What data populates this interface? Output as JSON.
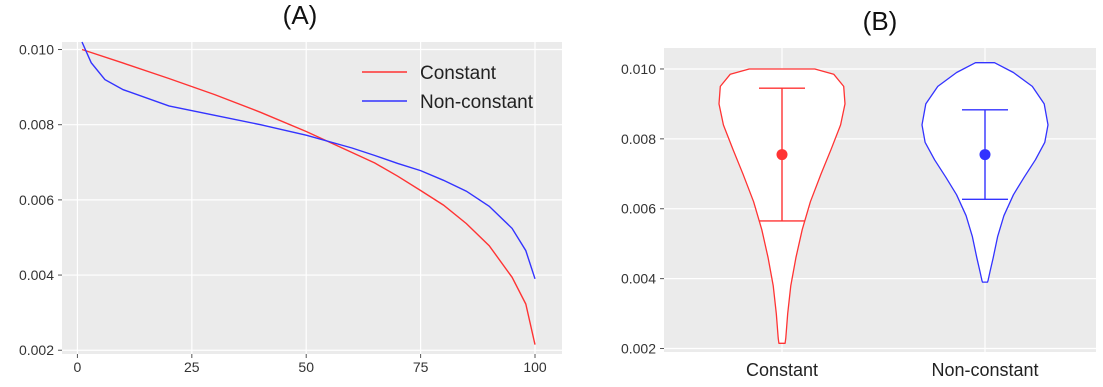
{
  "panels": {
    "a_label": "(A)",
    "b_label": "(B)"
  },
  "colors": {
    "constant": "#ff3333",
    "non_constant": "#3333ff",
    "panel_bg": "#ebebeb",
    "grid": "#ffffff"
  },
  "chart_data": [
    {
      "type": "line",
      "title": "(A)",
      "xlabel": "",
      "ylabel": "",
      "xlim": [
        1,
        100
      ],
      "ylim": [
        0.0019,
        0.0102
      ],
      "x_ticks": [
        "0",
        "25",
        "50",
        "75",
        "100"
      ],
      "y_ticks": [
        "0.002",
        "0.004",
        "0.006",
        "0.008",
        "0.010"
      ],
      "grid": true,
      "legend_position": "top-right",
      "series": [
        {
          "name": "Constant",
          "color": "#ff3333",
          "x": [
            1,
            10,
            20,
            30,
            40,
            50,
            60,
            65,
            70,
            75,
            80,
            85,
            90,
            95,
            98,
            100
          ],
          "y": [
            0.01,
            0.00964,
            0.00923,
            0.0088,
            0.00833,
            0.00782,
            0.00726,
            0.00698,
            0.00663,
            0.00625,
            0.00586,
            0.00537,
            0.00478,
            0.00394,
            0.00323,
            0.00215
          ]
        },
        {
          "name": "Non-constant",
          "color": "#3333ff",
          "x": [
            1,
            3,
            6,
            10,
            20,
            30,
            40,
            50,
            60,
            65,
            70,
            75,
            80,
            85,
            90,
            95,
            98,
            100
          ],
          "y": [
            0.0102,
            0.00965,
            0.0092,
            0.00893,
            0.0085,
            0.00825,
            0.008,
            0.00772,
            0.00738,
            0.00718,
            0.00697,
            0.00678,
            0.00652,
            0.00623,
            0.00583,
            0.00524,
            0.00465,
            0.0039
          ]
        }
      ]
    },
    {
      "type": "violin",
      "title": "(B)",
      "categories": [
        "Constant",
        "Non-constant"
      ],
      "ylim": [
        0.0019,
        0.0106
      ],
      "y_ticks": [
        "0.002",
        "0.004",
        "0.006",
        "0.008",
        "0.010"
      ],
      "grid": true,
      "series": [
        {
          "name": "Constant",
          "color": "#ff3333",
          "mean": 0.00755,
          "error_bar": [
            0.00565,
            0.00945
          ],
          "range": [
            0.00215,
            0.01
          ],
          "max_half_width": 0.95
        },
        {
          "name": "Non-constant",
          "color": "#3333ff",
          "mean": 0.00755,
          "error_bar": [
            0.00627,
            0.00883
          ],
          "range": [
            0.0039,
            0.01018
          ],
          "max_half_width": 0.95
        }
      ]
    }
  ]
}
